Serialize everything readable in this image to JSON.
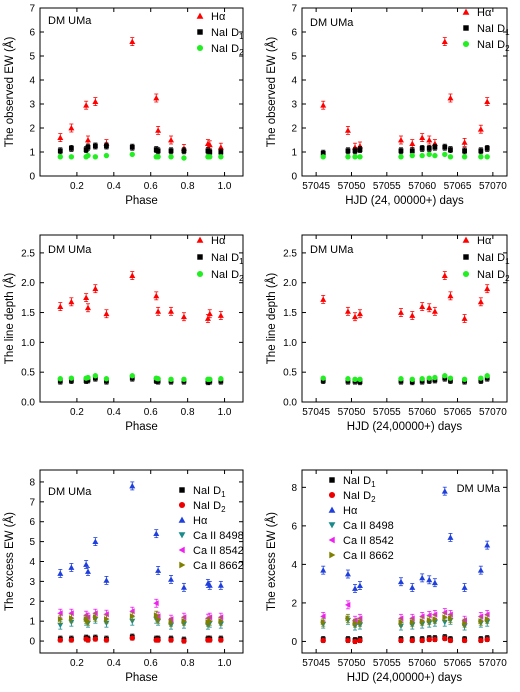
{
  "chart_data": [
    {
      "id": "ew_phase",
      "type": "scatter",
      "annotation": "DM UMa",
      "xlabel": "Phase",
      "ylabel": "The observed EW (Å)",
      "xlim": [
        0.0,
        1.1
      ],
      "ylim": [
        0,
        7
      ],
      "xticks": [
        "0.2",
        "0.4",
        "0.6",
        "0.8",
        "1.0"
      ],
      "yticks": [
        "0",
        "1",
        "2",
        "3",
        "4",
        "5",
        "6",
        "7"
      ],
      "legend": "top-right",
      "grid": false,
      "series": [
        {
          "name": "Hα",
          "marker": "triangle-up",
          "color": "#ff0000",
          "x": [
            0.11,
            0.17,
            0.25,
            0.26,
            0.3,
            0.36,
            0.5,
            0.63,
            0.64,
            0.71,
            0.78,
            0.91,
            0.92,
            0.98
          ],
          "y": [
            1.6,
            2.0,
            2.95,
            1.5,
            3.1,
            1.35,
            5.6,
            3.25,
            1.9,
            1.5,
            1.15,
            1.35,
            1.3,
            1.2
          ]
        },
        {
          "name": "NaI D₁",
          "marker": "square",
          "color": "#000000",
          "x": [
            0.11,
            0.17,
            0.25,
            0.26,
            0.3,
            0.36,
            0.5,
            0.63,
            0.64,
            0.71,
            0.78,
            0.91,
            0.92,
            0.98
          ],
          "y": [
            1.05,
            1.15,
            1.1,
            1.2,
            1.25,
            1.25,
            1.2,
            1.1,
            1.05,
            1.05,
            1.05,
            1.05,
            1.0,
            1.0
          ]
        },
        {
          "name": "NaI D₂",
          "marker": "circle",
          "color": "#22ee22",
          "x": [
            0.11,
            0.17,
            0.25,
            0.26,
            0.3,
            0.36,
            0.5,
            0.63,
            0.64,
            0.71,
            0.78,
            0.91,
            0.92,
            0.98
          ],
          "y": [
            0.8,
            0.8,
            0.8,
            0.85,
            0.8,
            0.85,
            0.9,
            0.8,
            0.8,
            0.8,
            0.75,
            0.8,
            0.8,
            0.8
          ]
        }
      ]
    },
    {
      "id": "ew_hjd",
      "type": "scatter",
      "annotation": "DM UMa",
      "xlabel": "HJD (24, 00000+) days",
      "ylabel": "The observed EW (Å)",
      "xlim": [
        57043,
        57072
      ],
      "ylim": [
        0,
        7
      ],
      "xticks": [
        "57045",
        "57050",
        "57055",
        "57060",
        "57065",
        "57070"
      ],
      "yticks": [
        "0",
        "1",
        "2",
        "3",
        "4",
        "5",
        "6",
        "7"
      ],
      "legend": "top-right",
      "grid": false,
      "series": [
        {
          "name": "Hα",
          "marker": "triangle-up",
          "color": "#ff0000",
          "x": [
            57046,
            57049.5,
            57050.5,
            57051.2,
            57057,
            57058.6,
            57060,
            57061,
            57061.8,
            57063.2,
            57064,
            57066,
            57068.3,
            57069.2
          ],
          "y": [
            2.95,
            1.9,
            1.2,
            1.25,
            1.5,
            1.35,
            1.6,
            1.5,
            1.35,
            5.6,
            3.25,
            1.4,
            1.95,
            3.1
          ]
        },
        {
          "name": "NaI D₁",
          "marker": "square",
          "color": "#000000",
          "x": [
            57046,
            57049.5,
            57050.5,
            57051.2,
            57057,
            57058.6,
            57060,
            57061,
            57061.8,
            57063.2,
            57064,
            57066,
            57068.3,
            57069.2
          ],
          "y": [
            0.95,
            1.05,
            1.05,
            1.1,
            1.05,
            1.05,
            1.15,
            1.15,
            1.2,
            1.2,
            1.1,
            1.05,
            1.05,
            1.15
          ]
        },
        {
          "name": "NaI D₂",
          "marker": "circle",
          "color": "#22ee22",
          "x": [
            57046,
            57049.5,
            57050.5,
            57051.2,
            57057,
            57058.6,
            57060,
            57061,
            57061.8,
            57063.2,
            57064,
            57066,
            57068.3,
            57069.2
          ],
          "y": [
            0.8,
            0.8,
            0.8,
            0.8,
            0.8,
            0.85,
            0.85,
            0.9,
            0.85,
            0.9,
            0.8,
            0.8,
            0.8,
            0.8
          ]
        }
      ]
    },
    {
      "id": "depth_phase",
      "type": "scatter",
      "annotation": "DM UMa",
      "xlabel": "Phase",
      "ylabel": "The line depth (Å)",
      "xlim": [
        0.0,
        1.1
      ],
      "ylim": [
        0.0,
        2.8
      ],
      "xticks": [
        "0.2",
        "0.4",
        "0.6",
        "0.8",
        "1.0"
      ],
      "yticks": [
        "0.0",
        "0.5",
        "1.0",
        "1.5",
        "2.0",
        "2.5"
      ],
      "legend": "top-right",
      "grid": false,
      "series": [
        {
          "name": "Hα",
          "marker": "triangle-up",
          "color": "#ff0000",
          "x": [
            0.11,
            0.17,
            0.25,
            0.26,
            0.3,
            0.36,
            0.5,
            0.63,
            0.64,
            0.71,
            0.78,
            0.91,
            0.92,
            0.98
          ],
          "y": [
            1.6,
            1.68,
            1.75,
            1.58,
            1.9,
            1.48,
            2.12,
            1.78,
            1.52,
            1.52,
            1.43,
            1.4,
            1.48,
            1.45
          ]
        },
        {
          "name": "NaI D₁",
          "marker": "square",
          "color": "#000000",
          "x": [
            0.11,
            0.17,
            0.25,
            0.26,
            0.3,
            0.36,
            0.5,
            0.63,
            0.64,
            0.71,
            0.78,
            0.91,
            0.92,
            0.98
          ],
          "y": [
            0.35,
            0.36,
            0.36,
            0.37,
            0.4,
            0.35,
            0.4,
            0.36,
            0.35,
            0.35,
            0.35,
            0.34,
            0.35,
            0.35
          ]
        },
        {
          "name": "NaI D₂",
          "marker": "circle",
          "color": "#22ee22",
          "x": [
            0.11,
            0.17,
            0.25,
            0.26,
            0.3,
            0.36,
            0.5,
            0.63,
            0.64,
            0.71,
            0.78,
            0.91,
            0.92,
            0.98
          ],
          "y": [
            0.39,
            0.4,
            0.4,
            0.41,
            0.44,
            0.39,
            0.44,
            0.4,
            0.39,
            0.38,
            0.38,
            0.38,
            0.38,
            0.39
          ]
        }
      ]
    },
    {
      "id": "depth_hjd",
      "type": "scatter",
      "annotation": "DM UMa",
      "xlabel": "HJD (24,00000+) days",
      "ylabel": "The line depth (Å)",
      "xlim": [
        57043,
        57072
      ],
      "ylim": [
        0.0,
        2.8
      ],
      "xticks": [
        "57045",
        "57050",
        "57055",
        "57060",
        "57065",
        "57070"
      ],
      "yticks": [
        "0.0",
        "0.5",
        "1.0",
        "1.5",
        "2.0",
        "2.5"
      ],
      "legend": "top-right",
      "grid": false,
      "series": [
        {
          "name": "Hα",
          "marker": "triangle-up",
          "color": "#ff0000",
          "x": [
            57046,
            57049.5,
            57050.5,
            57051.2,
            57057,
            57058.6,
            57060,
            57061,
            57061.8,
            57063.2,
            57064,
            57066,
            57068.3,
            57069.2
          ],
          "y": [
            1.72,
            1.52,
            1.43,
            1.48,
            1.5,
            1.45,
            1.6,
            1.58,
            1.52,
            2.12,
            1.78,
            1.4,
            1.68,
            1.9
          ]
        },
        {
          "name": "NaI D₁",
          "marker": "square",
          "color": "#000000",
          "x": [
            57046,
            57049.5,
            57050.5,
            57051.2,
            57057,
            57058.6,
            57060,
            57061,
            57061.8,
            57063.2,
            57064,
            57066,
            57068.3,
            57069.2
          ],
          "y": [
            0.36,
            0.35,
            0.35,
            0.34,
            0.35,
            0.34,
            0.35,
            0.36,
            0.37,
            0.4,
            0.36,
            0.35,
            0.36,
            0.4
          ]
        },
        {
          "name": "NaI D₂",
          "marker": "circle",
          "color": "#22ee22",
          "x": [
            57046,
            57049.5,
            57050.5,
            57051.2,
            57057,
            57058.6,
            57060,
            57061,
            57061.8,
            57063.2,
            57064,
            57066,
            57068.3,
            57069.2
          ],
          "y": [
            0.4,
            0.39,
            0.38,
            0.38,
            0.39,
            0.38,
            0.39,
            0.4,
            0.41,
            0.44,
            0.4,
            0.38,
            0.4,
            0.44
          ]
        }
      ]
    },
    {
      "id": "excess_phase",
      "type": "scatter",
      "annotation": "DM UMa",
      "xlabel": "Phase",
      "ylabel": "The excess EW (Å)",
      "xlim": [
        0.0,
        1.1
      ],
      "ylim": [
        -0.6,
        8.6
      ],
      "xticks": [
        "0.2",
        "0.4",
        "0.6",
        "0.8",
        "1.0"
      ],
      "yticks": [
        "0",
        "1",
        "2",
        "3",
        "4",
        "5",
        "6",
        "7",
        "8"
      ],
      "legend": "top-right",
      "grid": false,
      "series": [
        {
          "name": "NaI D₁",
          "marker": "square",
          "color": "#000000",
          "x": [
            0.11,
            0.17,
            0.25,
            0.26,
            0.3,
            0.36,
            0.5,
            0.63,
            0.64,
            0.71,
            0.78,
            0.91,
            0.92,
            0.98
          ],
          "y": [
            0.1,
            0.1,
            0.15,
            0.1,
            0.15,
            0.1,
            0.2,
            0.1,
            0.1,
            0.1,
            0.05,
            0.1,
            0.1,
            0.1
          ]
        },
        {
          "name": "NaI D₂",
          "marker": "circle",
          "color": "#ee0000",
          "x": [
            0.11,
            0.17,
            0.25,
            0.26,
            0.3,
            0.36,
            0.5,
            0.63,
            0.64,
            0.71,
            0.78,
            0.91,
            0.92,
            0.98
          ],
          "y": [
            0.05,
            0.05,
            0.1,
            0.05,
            0.1,
            0.05,
            0.15,
            0.05,
            0.05,
            0.05,
            0.0,
            0.05,
            0.05,
            0.05
          ]
        },
        {
          "name": "Hα",
          "marker": "triangle-up",
          "color": "#1f3fdd",
          "x": [
            0.11,
            0.17,
            0.25,
            0.26,
            0.3,
            0.36,
            0.5,
            0.63,
            0.64,
            0.71,
            0.78,
            0.91,
            0.92,
            0.98
          ],
          "y": [
            3.4,
            3.7,
            3.85,
            3.5,
            5.0,
            3.05,
            7.8,
            5.4,
            3.55,
            3.1,
            2.7,
            2.9,
            2.8,
            2.8
          ]
        },
        {
          "name": "Ca II 8498",
          "marker": "triangle-down",
          "color": "#1a8a8a",
          "x": [
            0.11,
            0.17,
            0.25,
            0.26,
            0.3,
            0.36,
            0.5,
            0.63,
            0.64,
            0.71,
            0.78,
            0.91,
            0.92,
            0.98
          ],
          "y": [
            0.8,
            0.95,
            1.0,
            0.9,
            1.1,
            0.9,
            1.0,
            1.1,
            1.0,
            0.8,
            0.85,
            0.8,
            0.9,
            0.85
          ]
        },
        {
          "name": "Ca II 8542",
          "marker": "triangle-left",
          "color": "#ee22ee",
          "x": [
            0.11,
            0.17,
            0.25,
            0.26,
            0.3,
            0.36,
            0.5,
            0.63,
            0.64,
            0.71,
            0.78,
            0.91,
            0.92,
            0.98
          ],
          "y": [
            1.4,
            1.4,
            1.3,
            1.2,
            1.4,
            1.35,
            1.5,
            1.9,
            1.25,
            1.1,
            1.2,
            1.15,
            1.2,
            1.2
          ]
        },
        {
          "name": "Ca II 8662",
          "marker": "triangle-right",
          "color": "#808000",
          "x": [
            0.11,
            0.17,
            0.25,
            0.26,
            0.3,
            0.36,
            0.5,
            0.63,
            0.64,
            0.71,
            0.78,
            0.91,
            0.92,
            0.98
          ],
          "y": [
            1.1,
            1.15,
            1.1,
            1.0,
            1.2,
            1.1,
            1.25,
            1.3,
            1.1,
            0.95,
            1.0,
            0.95,
            1.0,
            1.0
          ]
        }
      ]
    },
    {
      "id": "excess_hjd",
      "type": "scatter",
      "annotation": "DM UMa",
      "xlabel": "HJD (24,00000+) days",
      "ylabel": "The excess EW (Å)",
      "xlim": [
        57043,
        57072
      ],
      "ylim": [
        -0.6,
        8.9
      ],
      "xticks": [
        "57045",
        "57050",
        "57055",
        "57060",
        "57065",
        "57070"
      ],
      "yticks": [
        "0",
        "2",
        "4",
        "6",
        "8"
      ],
      "legend": "top-left",
      "grid": false,
      "series": [
        {
          "name": "NaI D₁",
          "marker": "square",
          "color": "#000000",
          "x": [
            57046,
            57049.5,
            57050.5,
            57051.2,
            57057,
            57058.6,
            57060,
            57061,
            57061.8,
            57063.2,
            57064,
            57066,
            57068.3,
            57069.2
          ],
          "y": [
            0.1,
            0.1,
            0.05,
            0.1,
            0.1,
            0.1,
            0.1,
            0.15,
            0.15,
            0.2,
            0.1,
            0.1,
            0.1,
            0.15
          ]
        },
        {
          "name": "NaI D₂",
          "marker": "circle",
          "color": "#ee0000",
          "x": [
            57046,
            57049.5,
            57050.5,
            57051.2,
            57057,
            57058.6,
            57060,
            57061,
            57061.8,
            57063.2,
            57064,
            57066,
            57068.3,
            57069.2
          ],
          "y": [
            0.05,
            0.05,
            0.0,
            0.05,
            0.05,
            0.05,
            0.05,
            0.1,
            0.1,
            0.15,
            0.05,
            0.05,
            0.05,
            0.1
          ]
        },
        {
          "name": "Hα",
          "marker": "triangle-up",
          "color": "#1f3fdd",
          "x": [
            57046,
            57049.5,
            57050.5,
            57051.2,
            57057,
            57058.6,
            57060,
            57061,
            57061.8,
            57063.2,
            57064,
            57066,
            57068.3,
            57069.2
          ],
          "y": [
            3.7,
            3.5,
            2.75,
            2.9,
            3.1,
            2.8,
            3.3,
            3.2,
            3.05,
            7.8,
            5.4,
            2.8,
            3.7,
            5.0
          ]
        },
        {
          "name": "Ca II 8498",
          "marker": "triangle-down",
          "color": "#1a8a8a",
          "x": [
            57046,
            57049.5,
            57050.5,
            57051.2,
            57057,
            57058.6,
            57060,
            57061,
            57061.8,
            57063.2,
            57064,
            57066,
            57068.3,
            57069.2
          ],
          "y": [
            0.9,
            1.1,
            0.8,
            0.85,
            0.8,
            0.85,
            0.9,
            0.95,
            1.0,
            1.0,
            1.1,
            0.8,
            0.95,
            1.0
          ]
        },
        {
          "name": "Ca II 8542",
          "marker": "triangle-left",
          "color": "#ee22ee",
          "x": [
            57046,
            57049.5,
            57050.5,
            57051.2,
            57057,
            57058.6,
            57060,
            57061,
            57061.8,
            57063.2,
            57064,
            57066,
            57068.3,
            57069.2
          ],
          "y": [
            1.3,
            1.9,
            1.1,
            1.2,
            1.2,
            1.2,
            1.3,
            1.35,
            1.4,
            1.5,
            1.4,
            1.1,
            1.3,
            1.4
          ]
        },
        {
          "name": "Ca II 8662",
          "marker": "triangle-right",
          "color": "#808000",
          "x": [
            57046,
            57049.5,
            57050.5,
            57051.2,
            57057,
            57058.6,
            57060,
            57061,
            57061.8,
            57063.2,
            57064,
            57066,
            57068.3,
            57069.2
          ],
          "y": [
            1.0,
            1.2,
            0.95,
            1.0,
            1.0,
            1.0,
            1.05,
            1.1,
            1.15,
            1.25,
            1.2,
            0.95,
            1.05,
            1.15
          ]
        }
      ]
    }
  ]
}
